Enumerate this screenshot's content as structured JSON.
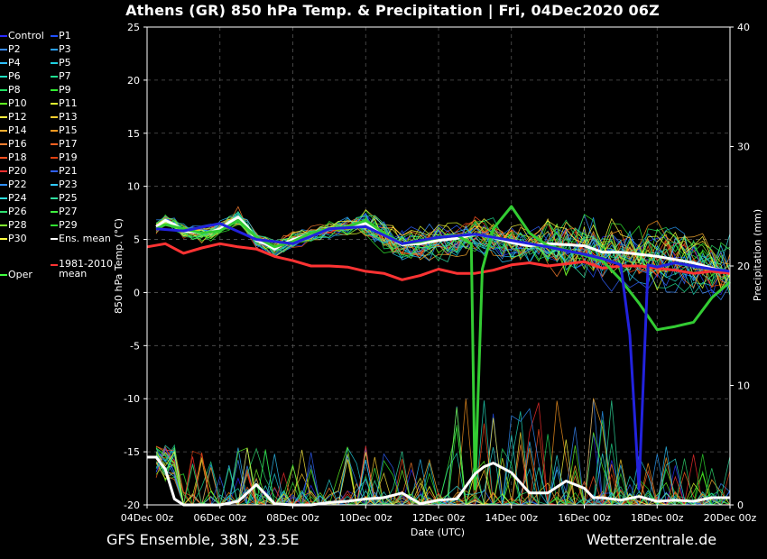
{
  "title": "Athens  (GR)  850 hPa Temp. & Precipitation | Fri, 04Dec2020 06Z",
  "footer": {
    "left": "GFS Ensemble, 38N, 23.5E",
    "right": "Wetterzentrale.de"
  },
  "colors": {
    "background": "#000000",
    "grid": "#444444",
    "ens_mean": "#ffffff",
    "climate_mean": "#ff3333",
    "oper": "#33cc33",
    "control": "#2222dd"
  },
  "legend": [
    {
      "label": "Control",
      "color": "#2a2aff"
    },
    {
      "label": "P1",
      "color": "#2050ff"
    },
    {
      "label": "P2",
      "color": "#3a8cff"
    },
    {
      "label": "P3",
      "color": "#2aa0ff"
    },
    {
      "label": "P4",
      "color": "#30c0ff"
    },
    {
      "label": "P5",
      "color": "#20d0e0"
    },
    {
      "label": "P6",
      "color": "#20e0c0"
    },
    {
      "label": "P7",
      "color": "#20e090"
    },
    {
      "label": "P8",
      "color": "#20e060"
    },
    {
      "label": "P9",
      "color": "#30ee30"
    },
    {
      "label": "P10",
      "color": "#60ff20"
    },
    {
      "label": "P11",
      "color": "#e0ff30"
    },
    {
      "label": "P12",
      "color": "#ffee40"
    },
    {
      "label": "P13",
      "color": "#ffd030"
    },
    {
      "label": "P14",
      "color": "#ffb030"
    },
    {
      "label": "P15",
      "color": "#ff9a20"
    },
    {
      "label": "P16",
      "color": "#ff8030"
    },
    {
      "label": "P17",
      "color": "#ff6020"
    },
    {
      "label": "P18",
      "color": "#ff5020"
    },
    {
      "label": "P19",
      "color": "#e04010"
    },
    {
      "label": "P20",
      "color": "#ff3030"
    },
    {
      "label": "P21",
      "color": "#3060ff"
    },
    {
      "label": "P22",
      "color": "#3090ff"
    },
    {
      "label": "P23",
      "color": "#30c8ff"
    },
    {
      "label": "P24",
      "color": "#30e0e0"
    },
    {
      "label": "P25",
      "color": "#30e0a0"
    },
    {
      "label": "P26",
      "color": "#30e070"
    },
    {
      "label": "P27",
      "color": "#40f040"
    },
    {
      "label": "P28",
      "color": "#80ff30"
    },
    {
      "label": "P29",
      "color": "#30e030"
    },
    {
      "label": "P30",
      "color": "#ffff40"
    },
    {
      "label": "Ens. mean",
      "color": "#ffffff"
    },
    {
      "label": "Oper",
      "color": "#40ff40"
    },
    {
      "label": "1981-2010\nmean",
      "color": "#ff3333"
    }
  ],
  "chart_data": {
    "type": "line",
    "xlabel": "Date (UTC)",
    "ylabel": "850 hPa Temp. (°C)",
    "y2label": "Precipitation (mm)",
    "ylim": [
      -20,
      25
    ],
    "y2lim": [
      0,
      40
    ],
    "xlim_days": [
      0,
      16
    ],
    "x_ticks": [
      "04Dec 00z",
      "06Dec 00z",
      "08Dec 00z",
      "10Dec 00z",
      "12Dec 00z",
      "14Dec 00z",
      "16Dec 00z",
      "18Dec 00z",
      "20Dec 00z"
    ],
    "y_ticks": [
      25,
      20,
      15,
      10,
      5,
      0,
      -5,
      -10,
      -15,
      -20
    ],
    "y2_ticks": [
      40,
      30,
      20,
      10,
      0
    ],
    "grid": true,
    "series": [
      {
        "name": "Ens. mean",
        "axis": "temp",
        "color": "#ffffff",
        "width": 3,
        "x": [
          0.25,
          0.5,
          0.75,
          1,
          1.25,
          1.5,
          1.75,
          2,
          2.25,
          2.5,
          2.75,
          3,
          3.25,
          3.5,
          3.75,
          4,
          4.5,
          5,
          5.5,
          6,
          6.5,
          7,
          7.5,
          8,
          8.5,
          9,
          9.5,
          10,
          10.5,
          11,
          11.5,
          12,
          12.5,
          13,
          13.5,
          14,
          14.5,
          15,
          15.5,
          16
        ],
        "y": [
          6.2,
          6.8,
          6.4,
          5.8,
          5.7,
          5.6,
          5.7,
          6.0,
          6.6,
          7.1,
          6.2,
          4.9,
          4.6,
          4.1,
          4.6,
          5.0,
          5.5,
          6.0,
          6.2,
          6.5,
          5.5,
          4.5,
          4.6,
          4.9,
          5.1,
          5.5,
          5.2,
          4.7,
          4.4,
          4.6,
          4.5,
          4.4,
          3.8,
          3.8,
          3.6,
          3.4,
          3.1,
          2.8,
          2.3,
          1.9
        ]
      },
      {
        "name": "1981-2010 mean",
        "axis": "temp",
        "color": "#ff3333",
        "width": 3,
        "x": [
          0,
          0.5,
          1,
          1.5,
          2,
          2.5,
          3,
          3.5,
          4,
          4.5,
          5,
          5.5,
          6,
          6.5,
          7,
          7.5,
          8,
          8.5,
          9,
          9.5,
          10,
          10.5,
          11,
          11.5,
          12,
          12.5,
          13,
          13.5,
          14,
          14.5,
          15,
          15.5,
          16
        ],
        "y": [
          4.3,
          4.6,
          3.7,
          4.2,
          4.6,
          4.3,
          4.1,
          3.4,
          3.0,
          2.5,
          2.5,
          2.4,
          2.0,
          1.8,
          1.2,
          1.6,
          2.2,
          1.8,
          1.8,
          2.1,
          2.6,
          2.8,
          2.5,
          2.7,
          2.9,
          2.3,
          2.5,
          2.5,
          2.3,
          2.1,
          1.8,
          2.0,
          1.8
        ]
      },
      {
        "name": "Oper",
        "axis": "temp",
        "color": "#33cc33",
        "width": 3,
        "x": [
          0.25,
          0.5,
          1,
          1.5,
          2,
          2.5,
          3,
          3.5,
          4,
          4.5,
          5,
          5.5,
          6,
          6.5,
          7,
          7.5,
          8,
          8.5,
          8.9,
          9,
          9.2,
          9.5,
          10,
          10.5,
          11,
          11.5,
          12,
          12.5,
          13,
          13.5,
          14,
          14.5,
          15,
          15.5,
          16
        ],
        "y": [
          6.0,
          6.4,
          6.0,
          5.6,
          5.8,
          6.8,
          5.2,
          4.3,
          4.8,
          5.6,
          6.0,
          6.2,
          6.8,
          5.6,
          4.6,
          4.8,
          5.2,
          5.4,
          4.6,
          -18.5,
          2.2,
          6.0,
          8.1,
          5.6,
          4.4,
          4.0,
          3.5,
          3.0,
          1.2,
          -1.0,
          -3.5,
          -3.2,
          -2.8,
          -0.5,
          1.0
        ]
      },
      {
        "name": "Control",
        "axis": "temp",
        "color": "#2222dd",
        "width": 3,
        "x": [
          0.25,
          1,
          2,
          3,
          4,
          5,
          6,
          7,
          8,
          9,
          10,
          11,
          12,
          12.5,
          13,
          13.25,
          13.5,
          13.75,
          14,
          14.25,
          14.5,
          15,
          15.5,
          16
        ],
        "y": [
          6.0,
          5.8,
          6.5,
          5.0,
          4.6,
          6.0,
          6.2,
          4.6,
          5.2,
          5.5,
          4.9,
          4.3,
          3.6,
          3.2,
          2.6,
          -4.0,
          -18.5,
          2.6,
          2.4,
          2.6,
          2.8,
          2.5,
          2.2,
          2.0
        ]
      },
      {
        "name": "Ens. mean precip",
        "axis": "precip",
        "color": "#ffffff",
        "width": 3,
        "x": [
          0,
          0.25,
          0.5,
          0.75,
          1,
          1.5,
          2,
          2.5,
          3,
          3.5,
          4,
          4.5,
          5,
          5.5,
          6,
          6.5,
          7,
          7.5,
          8,
          8.5,
          9,
          9.25,
          9.5,
          10,
          10.5,
          11,
          11.5,
          12,
          12.25,
          12.5,
          13,
          13.5,
          14,
          14.5,
          15,
          15.5,
          16
        ],
        "y": [
          4.0,
          4.0,
          3.0,
          0.5,
          0.0,
          0.0,
          0.0,
          0.3,
          1.7,
          0.1,
          0.0,
          0.0,
          0.2,
          0.3,
          0.5,
          0.6,
          1.0,
          0.1,
          0.4,
          0.5,
          2.6,
          3.2,
          3.5,
          2.7,
          1.0,
          1.0,
          2.0,
          1.4,
          0.6,
          0.6,
          0.4,
          0.7,
          0.3,
          0.4,
          0.3,
          0.6,
          0.6
        ]
      }
    ]
  }
}
